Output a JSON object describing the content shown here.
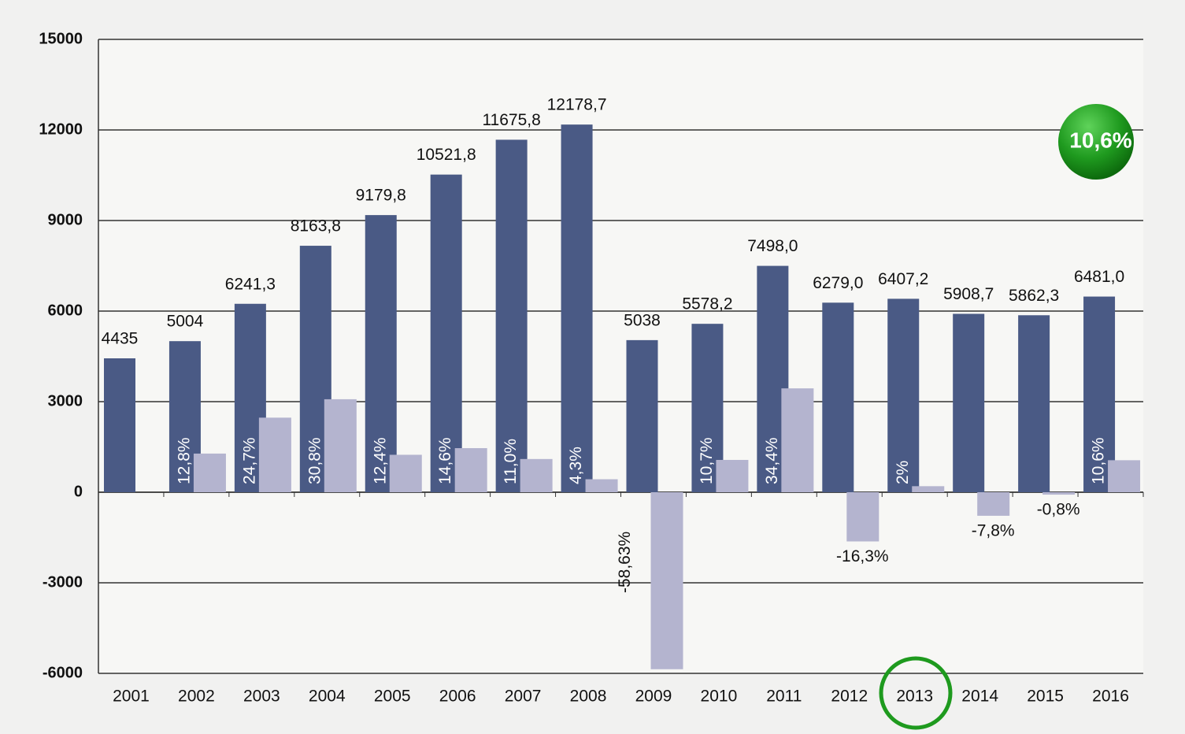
{
  "chart_data": {
    "type": "bar",
    "annotation": "10,6%",
    "categories": [
      "2001",
      "2002",
      "2003",
      "2004",
      "2005",
      "2006",
      "2007",
      "2008",
      "2009",
      "2010",
      "2011",
      "2012",
      "2013",
      "2014",
      "2015",
      "2016"
    ],
    "series": [
      {
        "color": "#4a5a85",
        "values": [
          4435,
          5004,
          6241.3,
          8163.8,
          9179.8,
          10521.8,
          11675.8,
          12178.7,
          5038,
          5578.2,
          7498.0,
          6279.0,
          6407.2,
          5908.7,
          5862.3,
          6481.0
        ],
        "value_labels": [
          "4435",
          "5004",
          "6241,3",
          "8163,8",
          "9179,8",
          "10521,8",
          "11675,8",
          "12178,7",
          "5038",
          "5578,2",
          "7498,0",
          "6279,0",
          "6407,2",
          "5908,7",
          "5862,3",
          "6481,0"
        ]
      },
      {
        "color": "#b4b4cf",
        "values": [
          null,
          1280,
          2470,
          3080,
          1240,
          1460,
          1100,
          430,
          -5863,
          1070,
          3440,
          -1630,
          200,
          -780,
          -80,
          1060
        ],
        "value_labels": [
          null,
          "12,8%",
          "24,7%",
          "30,8%",
          "12,4%",
          "14,6%",
          "11,0%",
          "4,3%",
          "-58,63%",
          "10,7%",
          "34,4%",
          "-16,3%",
          "2%",
          "-7,8%",
          "-0,8%",
          "10,6%"
        ]
      }
    ],
    "ylim": [
      -6000,
      15000
    ],
    "yticks": [
      -6000,
      -3000,
      0,
      3000,
      6000,
      9000,
      12000,
      15000
    ],
    "grid": true
  }
}
